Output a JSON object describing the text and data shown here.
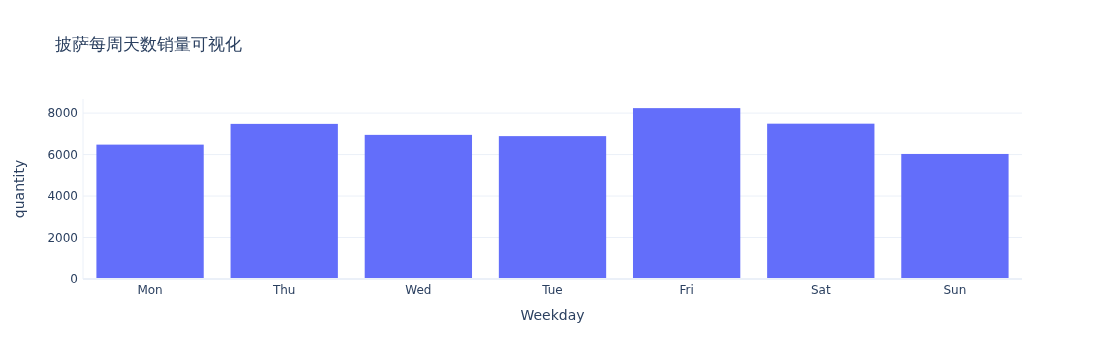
{
  "chart_data": {
    "type": "bar",
    "title": "披萨每周天数销量可视化",
    "xlabel": "Weekday",
    "ylabel": "quantity",
    "categories": [
      "Mon",
      "Thu",
      "Wed",
      "Tue",
      "Fri",
      "Sat",
      "Sun"
    ],
    "values": [
      6480,
      7480,
      6950,
      6890,
      8240,
      7490,
      6030
    ],
    "color": "#636efa",
    "ylim": [
      0,
      8680
    ],
    "yticks": [
      0,
      2000,
      4000,
      6000,
      8000
    ],
    "grid": "y"
  }
}
